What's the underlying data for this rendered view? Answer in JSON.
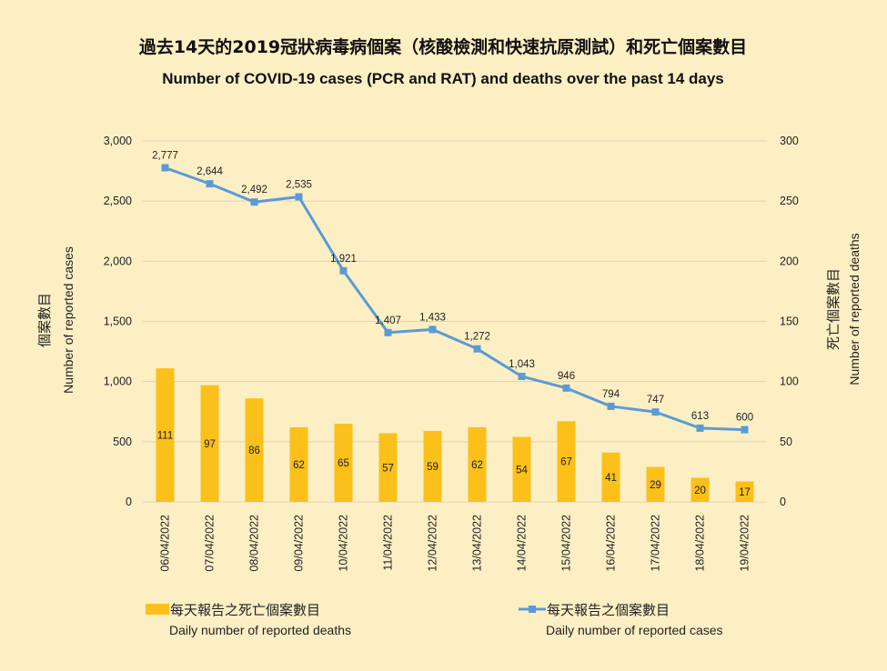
{
  "colors": {
    "bar": "#fbc01a",
    "line": "#5b9bd5",
    "grid": "#dcd3bd",
    "background": "#fdefc4"
  },
  "chart_data": {
    "type": "bar+line",
    "title": "過去14天的2019冠狀病毒病個案（核酸檢測和快速抗原測試）和死亡個案數目",
    "subtitle": "Number of COVID-19 cases (PCR and RAT) and deaths over the past 14 days",
    "categories": [
      "06/04/2022",
      "07/04/2022",
      "08/04/2022",
      "09/04/2022",
      "10/04/2022",
      "11/04/2022",
      "12/04/2022",
      "13/04/2022",
      "14/04/2022",
      "15/04/2022",
      "16/04/2022",
      "17/04/2022",
      "18/04/2022",
      "19/04/2022"
    ],
    "y_left": {
      "label_zh": "個案數目",
      "label_en": "Number of reported cases",
      "range": [
        0,
        3000
      ],
      "ticks": [
        0,
        500,
        1000,
        1500,
        2000,
        2500,
        3000
      ],
      "tick_labels": [
        "0",
        "500",
        "1,000",
        "1,500",
        "2,000",
        "2,500",
        "3,000"
      ]
    },
    "y_right": {
      "label_zh": "死亡個案數目",
      "label_en": "Number of reported deaths",
      "range": [
        0,
        300
      ],
      "ticks": [
        0,
        50,
        100,
        150,
        200,
        250,
        300
      ],
      "tick_labels": [
        "0",
        "50",
        "100",
        "150",
        "200",
        "250",
        "300"
      ]
    },
    "grid": true,
    "legend_position": "bottom",
    "series": [
      {
        "name": "每天報告之死亡個案數目",
        "name_en": "Daily number of reported deaths",
        "type": "bar",
        "axis": "right",
        "values": [
          111,
          97,
          86,
          62,
          65,
          57,
          59,
          62,
          54,
          67,
          41,
          29,
          20,
          17
        ],
        "labels": [
          "111",
          "97",
          "86",
          "62",
          "65",
          "57",
          "59",
          "62",
          "54",
          "67",
          "41",
          "29",
          "20",
          "17"
        ]
      },
      {
        "name": "每天報告之個案數目",
        "name_en": "Daily number of reported cases",
        "type": "line",
        "axis": "left",
        "values": [
          2777,
          2644,
          2492,
          2535,
          1921,
          1407,
          1433,
          1272,
          1043,
          946,
          794,
          747,
          613,
          600
        ],
        "labels": [
          "2,777",
          "2,644",
          "2,492",
          "2,535",
          "1,921",
          "1,407",
          "1,433",
          "1,272",
          "1,043",
          "946",
          "794",
          "747",
          "613",
          "600"
        ]
      }
    ]
  }
}
